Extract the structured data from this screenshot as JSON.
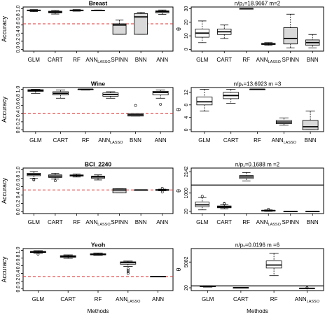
{
  "chart_data": [
    {
      "type": "boxplot",
      "title": "Breast",
      "ylabel": "Accuracy",
      "ylim": [
        0,
        1
      ],
      "yticks": [
        "0.0",
        "0.2",
        "0.4",
        "0.6",
        "0.8",
        "1.0"
      ],
      "reference_line": 0.63,
      "categories": [
        "GLM",
        "CART",
        "RF",
        "ANN_LASSO",
        "SPINN",
        "BNN",
        "ANN"
      ],
      "boxes": [
        {
          "min": 0.93,
          "q1": 0.95,
          "median": 0.96,
          "q3": 0.97,
          "max": 0.98,
          "outliers": [],
          "fill": "#ffffff"
        },
        {
          "min": 0.87,
          "q1": 0.9,
          "median": 0.92,
          "q3": 0.94,
          "max": 0.96,
          "outliers": [],
          "fill": "#ffffff"
        },
        {
          "min": 0.94,
          "q1": 0.95,
          "median": 0.96,
          "q3": 0.97,
          "max": 0.98,
          "outliers": [],
          "fill": "#ffffff"
        },
        {
          "min": 0.95,
          "q1": 0.955,
          "median": 0.96,
          "q3": 0.965,
          "max": 0.97,
          "outliers": [],
          "fill": "#ffffff"
        },
        {
          "min": 0.37,
          "q1": 0.37,
          "median": 0.6,
          "q3": 0.63,
          "max": 0.72,
          "outliers": [],
          "fill": "#d9d9d9"
        },
        {
          "min": 0.37,
          "q1": 0.37,
          "median": 0.8,
          "q3": 0.88,
          "max": 0.91,
          "outliers": [],
          "fill": "#d9d9d9"
        },
        {
          "min": 0.86,
          "q1": 0.9,
          "median": 0.93,
          "q3": 0.95,
          "max": 0.97,
          "outliers": [],
          "fill": "#ffffff"
        }
      ]
    },
    {
      "type": "boxplot",
      "title": "n/p₁=18.9667   m=2",
      "ylabel": "θ",
      "ylim": [
        0,
        30
      ],
      "yticks": [
        "0",
        "10",
        "20",
        "30"
      ],
      "categories": [
        "GLM",
        "CART",
        "RF",
        "ANN_LASSO",
        "SPINN",
        "BNN"
      ],
      "boxes": [
        {
          "min": 5,
          "q1": 9,
          "median": 12,
          "q3": 15,
          "max": 21,
          "outliers": [],
          "fill": "#ffffff"
        },
        {
          "min": 8,
          "q1": 11,
          "median": 13,
          "q3": 15,
          "max": 18,
          "outliers": [],
          "fill": "#ffffff"
        },
        {
          "min": 30,
          "q1": 30,
          "median": 30,
          "q3": 30,
          "max": 30,
          "outliers": [],
          "fill": "#ffffff"
        },
        {
          "min": 3,
          "q1": 3.6,
          "median": 4,
          "q3": 4.4,
          "max": 5,
          "outliers": [],
          "fill": "#ffffff"
        },
        {
          "min": 1,
          "q1": 4,
          "median": 8,
          "q3": 16,
          "max": 26,
          "outliers": [],
          "fill": "#d9d9d9"
        },
        {
          "min": 1,
          "q1": 3,
          "median": 5,
          "q3": 7,
          "max": 11,
          "outliers": [],
          "fill": "#d9d9d9"
        }
      ]
    },
    {
      "type": "boxplot",
      "title": "Wine",
      "ylabel": "Accuracy",
      "ylim": [
        0,
        1
      ],
      "yticks": [
        "0.0",
        "0.2",
        "0.4",
        "0.6",
        "0.8",
        "1.0"
      ],
      "reference_line": 0.4,
      "categories": [
        "GLM",
        "CART",
        "RF",
        "ANN_LASSO",
        "BNN",
        "ANN"
      ],
      "boxes": [
        {
          "min": 0.9,
          "q1": 0.95,
          "median": 0.97,
          "q3": 0.99,
          "max": 1.0,
          "outliers": [],
          "fill": "#ffffff"
        },
        {
          "min": 0.78,
          "q1": 0.86,
          "median": 0.9,
          "q3": 0.94,
          "max": 0.98,
          "outliers": [],
          "fill": "#ffffff"
        },
        {
          "min": 0.98,
          "q1": 0.99,
          "median": 1.0,
          "q3": 1.0,
          "max": 1.0,
          "outliers": [],
          "fill": "#ffffff"
        },
        {
          "min": 0.78,
          "q1": 0.83,
          "median": 0.87,
          "q3": 0.91,
          "max": 0.94,
          "outliers": [],
          "fill": "#ffffff"
        },
        {
          "min": 0.34,
          "q1": 0.34,
          "median": 0.37,
          "q3": 0.4,
          "max": 0.4,
          "outliers": [
            0.6
          ],
          "fill": "#d9d9d9"
        },
        {
          "min": 0.78,
          "q1": 0.86,
          "median": 0.92,
          "q3": 0.95,
          "max": 0.98,
          "outliers": [
            0.63
          ],
          "fill": "#ffffff"
        }
      ]
    },
    {
      "type": "boxplot",
      "title": "n/p₁=13.6923   m =3",
      "ylabel": "θ",
      "ylim": [
        0,
        13
      ],
      "yticks": [
        "0",
        "4",
        "8",
        "12"
      ],
      "categories": [
        "GLM",
        "CART",
        "RF",
        "ANN_LASSO",
        "BNN"
      ],
      "boxes": [
        {
          "min": 6,
          "q1": 8,
          "median": 9,
          "q3": 10.5,
          "max": 13,
          "outliers": [],
          "fill": "#ffffff"
        },
        {
          "min": 8.5,
          "q1": 10,
          "median": 11,
          "q3": 12,
          "max": 13,
          "outliers": [],
          "fill": "#ffffff"
        },
        {
          "min": 13,
          "q1": 13,
          "median": 13,
          "q3": 13,
          "max": 13,
          "outliers": [],
          "fill": "#ffffff"
        },
        {
          "min": 1.5,
          "q1": 2,
          "median": 2.5,
          "q3": 3,
          "max": 3.8,
          "outliers": [],
          "fill": "#ffffff"
        },
        {
          "min": 0,
          "q1": 0,
          "median": 1,
          "q3": 3,
          "max": 6,
          "outliers": [],
          "fill": "#d9d9d9"
        }
      ]
    },
    {
      "type": "boxplot",
      "title": "BCI_2240",
      "ylabel": "Accuracy",
      "ylim": [
        0,
        1
      ],
      "yticks": [
        "0.0",
        "0.2",
        "0.4",
        "0.6",
        "0.8",
        "1.0"
      ],
      "reference_line": 0.52,
      "categories": [
        "GLM",
        "CART",
        "RF",
        "ANN_LASSO",
        "SPINN",
        "BNN",
        "ANN"
      ],
      "boxes": [
        {
          "min": 0.8,
          "q1": 0.86,
          "median": 0.89,
          "q3": 0.92,
          "max": 0.96,
          "outliers": [
            0.76,
            0.78
          ],
          "fill": "#ffffff"
        },
        {
          "min": 0.78,
          "q1": 0.82,
          "median": 0.85,
          "q3": 0.88,
          "max": 0.92,
          "outliers": [
            0.74
          ],
          "fill": "#ffffff"
        },
        {
          "min": 0.83,
          "q1": 0.85,
          "median": 0.87,
          "q3": 0.88,
          "max": 0.9,
          "outliers": [],
          "fill": "#ffffff"
        },
        {
          "min": 0.76,
          "q1": 0.8,
          "median": 0.83,
          "q3": 0.85,
          "max": 0.88,
          "outliers": [],
          "fill": "#ffffff"
        },
        {
          "min": 0.45,
          "q1": 0.45,
          "median": 0.52,
          "q3": 0.55,
          "max": 0.55,
          "outliers": [],
          "fill": "#d9d9d9"
        },
        {
          "min": 0.52,
          "q1": 0.52,
          "median": 0.52,
          "q3": 0.52,
          "max": 0.52,
          "outliers": [],
          "fill": "#d9d9d9"
        },
        {
          "min": 0.5,
          "q1": 0.51,
          "median": 0.52,
          "q3": 0.53,
          "max": 0.54,
          "outliers": [
            0.47,
            0.56
          ],
          "fill": "#ffffff"
        }
      ]
    },
    {
      "type": "boxplot",
      "title": "n/p₁=0.1688   m =2",
      "ylabel": "θ",
      "ylim": [
        0,
        2240
      ],
      "yticks": [
        "20",
        "1000",
        "2142"
      ],
      "reference_line": 1430,
      "categories": [
        "GLM",
        "CART",
        "RF",
        "ANN_LASSO",
        "SPINN",
        "BNN"
      ],
      "boxes": [
        {
          "min": 100,
          "q1": 270,
          "median": 370,
          "q3": 520,
          "max": 760,
          "outliers": [
            830
          ],
          "fill": "#ffffff"
        },
        {
          "min": 160,
          "q1": 210,
          "median": 260,
          "q3": 310,
          "max": 380,
          "outliers": [
            420,
            440
          ],
          "fill": "#ffffff"
        },
        {
          "min": 1650,
          "q1": 1780,
          "median": 1860,
          "q3": 1940,
          "max": 2100,
          "outliers": [],
          "fill": "#ffffff"
        },
        {
          "min": 20,
          "q1": 40,
          "median": 60,
          "q3": 80,
          "max": 100,
          "outliers": [
            130
          ],
          "fill": "#ffffff"
        },
        {
          "min": 20,
          "q1": 20,
          "median": 20,
          "q3": 20,
          "max": 20,
          "outliers": [],
          "fill": "#ffffff"
        },
        {
          "min": 20,
          "q1": 20,
          "median": 20,
          "q3": 20,
          "max": 20,
          "outliers": [],
          "fill": "#ffffff"
        }
      ]
    },
    {
      "type": "boxplot",
      "title": "Yeoh",
      "ylabel": "Accuracy",
      "xlabel": "Methods",
      "ylim": [
        0,
        1
      ],
      "yticks": [
        "0.0",
        "0.2",
        "0.4",
        "0.6",
        "0.8",
        "1.0"
      ],
      "reference_line": 0.32,
      "categories": [
        "GLM",
        "CART",
        "RF",
        "ANN_LASSO",
        "ANN"
      ],
      "boxes": [
        {
          "min": 0.92,
          "q1": 0.94,
          "median": 0.96,
          "q3": 0.97,
          "max": 0.99,
          "outliers": [
            0.9
          ],
          "fill": "#ffffff"
        },
        {
          "min": 0.79,
          "q1": 0.82,
          "median": 0.84,
          "q3": 0.86,
          "max": 0.88,
          "outliers": [],
          "fill": "#ffffff"
        },
        {
          "min": 0.87,
          "q1": 0.88,
          "median": 0.9,
          "q3": 0.91,
          "max": 0.93,
          "outliers": [],
          "fill": "#ffffff"
        },
        {
          "min": 0.58,
          "q1": 0.64,
          "median": 0.68,
          "q3": 0.7,
          "max": 0.72,
          "outliers": [
            0.4,
            0.44,
            0.48,
            0.52
          ],
          "fill": "#ffffff"
        },
        {
          "min": 0.32,
          "q1": 0.32,
          "median": 0.32,
          "q3": 0.32,
          "max": 0.32,
          "outliers": [],
          "fill": "#ffffff"
        }
      ]
    },
    {
      "type": "boxplot",
      "title": "n/p₁=0.0196   m =6",
      "ylabel": "θ",
      "xlabel": "Methods",
      "ylim": [
        -200,
        7400
      ],
      "yticks": [
        "20",
        "5082"
      ],
      "reference_line": 400,
      "categories": [
        "GLM",
        "CART",
        "RF",
        "ANN_LASSO"
      ],
      "boxes": [
        {
          "min": 150,
          "q1": 230,
          "median": 290,
          "q3": 340,
          "max": 400,
          "outliers": [],
          "fill": "#ffffff"
        },
        {
          "min": 20,
          "q1": 30,
          "median": 40,
          "q3": 50,
          "max": 60,
          "outliers": [],
          "fill": "#ffffff"
        },
        {
          "min": 2400,
          "q1": 3900,
          "median": 4500,
          "q3": 5300,
          "max": 6800,
          "outliers": [],
          "fill": "#ffffff"
        },
        {
          "min": -100,
          "q1": -90,
          "median": -80,
          "q3": -70,
          "max": -60,
          "outliers": [
            -20,
            20
          ],
          "fill": "#ffffff"
        }
      ]
    }
  ]
}
